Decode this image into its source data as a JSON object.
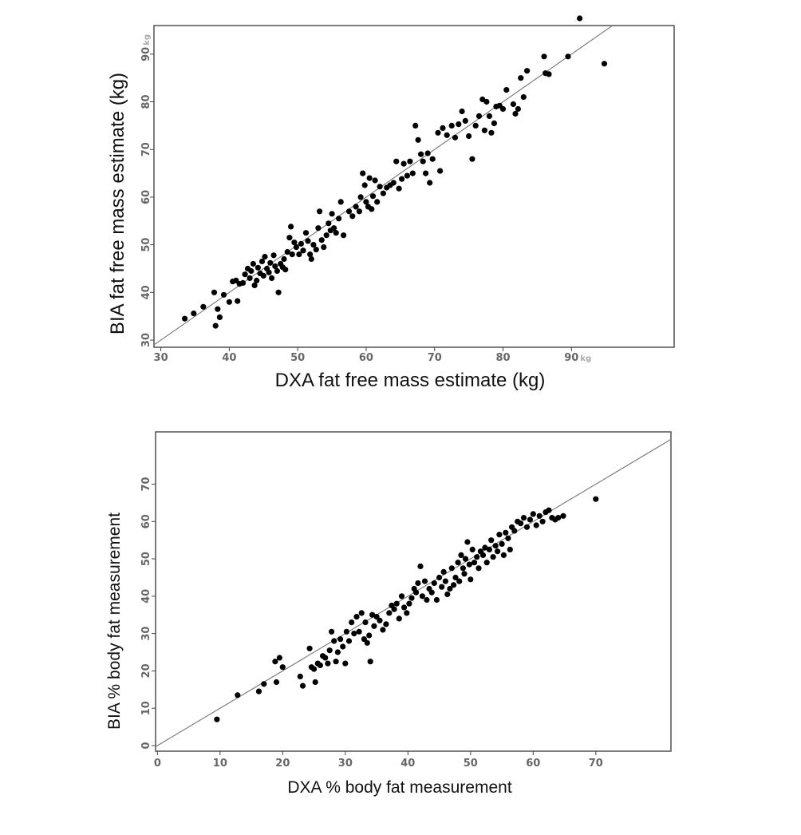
{
  "chart_data": [
    {
      "type": "scatter",
      "xlabel": "DXA fat free mass estimate (kg)",
      "ylabel": "BIA fat free mass estimate (kg)",
      "xlim": [
        29,
        105
      ],
      "ylim": [
        28.5,
        96
      ],
      "x_ticks": [
        30,
        40,
        50,
        60,
        70,
        80,
        90
      ],
      "y_ticks": [
        30,
        40,
        50,
        60,
        70,
        80,
        90
      ],
      "tick_unit": "kg",
      "identity_line": true,
      "grid": false,
      "points": [
        [
          33.5,
          34.5
        ],
        [
          34.8,
          35.6
        ],
        [
          36.2,
          37.0
        ],
        [
          37.8,
          40.0
        ],
        [
          38.0,
          33.0
        ],
        [
          38.3,
          36.5
        ],
        [
          38.6,
          34.8
        ],
        [
          39.2,
          39.5
        ],
        [
          40.0,
          38.0
        ],
        [
          40.5,
          42.3
        ],
        [
          41.2,
          38.2
        ],
        [
          41.0,
          42.5
        ],
        [
          41.5,
          41.8
        ],
        [
          42.0,
          42.0
        ],
        [
          42.3,
          43.8
        ],
        [
          42.7,
          45.0
        ],
        [
          43.0,
          43.0
        ],
        [
          43.2,
          44.5
        ],
        [
          43.5,
          46.0
        ],
        [
          43.7,
          41.5
        ],
        [
          44.0,
          42.5
        ],
        [
          44.2,
          45.2
        ],
        [
          44.5,
          44.0
        ],
        [
          44.8,
          46.5
        ],
        [
          45.0,
          43.5
        ],
        [
          45.2,
          47.5
        ],
        [
          45.5,
          45.0
        ],
        [
          45.8,
          44.2
        ],
        [
          46.0,
          46.2
        ],
        [
          46.2,
          43.0
        ],
        [
          46.5,
          47.8
        ],
        [
          46.7,
          45.5
        ],
        [
          47.0,
          44.5
        ],
        [
          47.2,
          40.0
        ],
        [
          47.5,
          46.0
        ],
        [
          47.8,
          45.3
        ],
        [
          48.0,
          47.0
        ],
        [
          48.2,
          44.8
        ],
        [
          48.5,
          48.5
        ],
        [
          48.8,
          51.5
        ],
        [
          49.0,
          53.8
        ],
        [
          49.2,
          48.0
        ],
        [
          49.5,
          50.5
        ],
        [
          49.8,
          49.5
        ],
        [
          50.2,
          48.0
        ],
        [
          50.5,
          50.2
        ],
        [
          50.8,
          48.8
        ],
        [
          51.2,
          52.5
        ],
        [
          51.5,
          50.8
        ],
        [
          51.8,
          48.0
        ],
        [
          52.0,
          47.0
        ],
        [
          52.3,
          50.0
        ],
        [
          52.7,
          49.0
        ],
        [
          53.0,
          53.5
        ],
        [
          53.2,
          57.0
        ],
        [
          53.5,
          51.0
        ],
        [
          53.8,
          49.5
        ],
        [
          54.2,
          52.0
        ],
        [
          54.5,
          54.5
        ],
        [
          54.8,
          53.0
        ],
        [
          55.0,
          56.5
        ],
        [
          55.3,
          53.5
        ],
        [
          55.6,
          52.5
        ],
        [
          56.0,
          55.5
        ],
        [
          56.3,
          59.0
        ],
        [
          56.7,
          52.0
        ],
        [
          57.5,
          57.0
        ],
        [
          58.0,
          56.0
        ],
        [
          58.5,
          58.0
        ],
        [
          59.0,
          57.0
        ],
        [
          59.2,
          60.0
        ],
        [
          59.5,
          65.0
        ],
        [
          59.8,
          62.5
        ],
        [
          60.0,
          59.0
        ],
        [
          60.3,
          58.0
        ],
        [
          60.5,
          64.0
        ],
        [
          60.8,
          57.5
        ],
        [
          61.0,
          60.2
        ],
        [
          61.3,
          63.5
        ],
        [
          61.6,
          59.0
        ],
        [
          62.0,
          62.2
        ],
        [
          62.5,
          60.8
        ],
        [
          63.0,
          62.0
        ],
        [
          63.5,
          62.5
        ],
        [
          64.0,
          63.0
        ],
        [
          64.4,
          67.5
        ],
        [
          64.8,
          61.8
        ],
        [
          65.2,
          63.8
        ],
        [
          65.5,
          67.0
        ],
        [
          66.0,
          64.5
        ],
        [
          66.4,
          67.5
        ],
        [
          66.8,
          65.0
        ],
        [
          67.2,
          75.0
        ],
        [
          67.6,
          72.0
        ],
        [
          68.0,
          69.0
        ],
        [
          68.3,
          67.5
        ],
        [
          68.7,
          65.0
        ],
        [
          69.0,
          69.2
        ],
        [
          69.3,
          63.0
        ],
        [
          69.7,
          68.0
        ],
        [
          70.5,
          73.5
        ],
        [
          70.8,
          65.5
        ],
        [
          71.2,
          74.5
        ],
        [
          71.8,
          73.0
        ],
        [
          72.5,
          75.0
        ],
        [
          73.0,
          72.5
        ],
        [
          73.5,
          75.3
        ],
        [
          74.0,
          78.0
        ],
        [
          74.5,
          76.0
        ],
        [
          75.0,
          72.8
        ],
        [
          75.5,
          68.0
        ],
        [
          76.0,
          75.0
        ],
        [
          76.5,
          77.0
        ],
        [
          77.0,
          80.5
        ],
        [
          77.3,
          74.0
        ],
        [
          77.6,
          80.0
        ],
        [
          78.0,
          77.0
        ],
        [
          78.3,
          73.5
        ],
        [
          78.7,
          75.5
        ],
        [
          79.0,
          79.0
        ],
        [
          79.5,
          79.2
        ],
        [
          80.0,
          78.5
        ],
        [
          80.5,
          82.5
        ],
        [
          81.5,
          79.5
        ],
        [
          81.8,
          77.5
        ],
        [
          82.2,
          78.5
        ],
        [
          82.6,
          85.0
        ],
        [
          83.0,
          81.0
        ],
        [
          83.5,
          86.5
        ],
        [
          86.0,
          89.5
        ],
        [
          86.2,
          86.0
        ],
        [
          86.7,
          85.8
        ],
        [
          89.5,
          89.5
        ],
        [
          91.2,
          97.5
        ],
        [
          94.8,
          88.0
        ]
      ]
    },
    {
      "type": "scatter",
      "xlabel": "DXA % body fat measurement",
      "ylabel": "BIA % body fat measurement",
      "xlim": [
        -0.3,
        82
      ],
      "ylim": [
        -1.5,
        84
      ],
      "x_ticks": [
        0,
        10,
        20,
        30,
        40,
        50,
        60,
        70
      ],
      "y_ticks": [
        0,
        10,
        20,
        30,
        40,
        50,
        60,
        70
      ],
      "identity_line": true,
      "grid": false,
      "points": [
        [
          9.5,
          7.0
        ],
        [
          12.8,
          13.5
        ],
        [
          16.2,
          14.5
        ],
        [
          17.0,
          16.5
        ],
        [
          18.8,
          22.5
        ],
        [
          19.0,
          17.0
        ],
        [
          19.5,
          23.5
        ],
        [
          20.0,
          21.0
        ],
        [
          22.8,
          18.5
        ],
        [
          23.2,
          16.0
        ],
        [
          24.3,
          26.0
        ],
        [
          24.6,
          21.0
        ],
        [
          25.0,
          20.5
        ],
        [
          25.2,
          17.0
        ],
        [
          25.6,
          22.0
        ],
        [
          26.0,
          21.5
        ],
        [
          26.4,
          24.0
        ],
        [
          26.8,
          23.5
        ],
        [
          27.2,
          22.0
        ],
        [
          27.5,
          25.5
        ],
        [
          27.8,
          30.5
        ],
        [
          28.2,
          28.0
        ],
        [
          28.5,
          22.5
        ],
        [
          28.8,
          25.0
        ],
        [
          29.2,
          28.5
        ],
        [
          29.6,
          26.5
        ],
        [
          30.0,
          22.0
        ],
        [
          30.2,
          30.5
        ],
        [
          30.6,
          28.0
        ],
        [
          31.0,
          33.0
        ],
        [
          31.4,
          30.0
        ],
        [
          31.8,
          34.5
        ],
        [
          32.2,
          30.5
        ],
        [
          32.6,
          35.5
        ],
        [
          33.0,
          28.5
        ],
        [
          33.2,
          33.0
        ],
        [
          33.5,
          27.5
        ],
        [
          33.8,
          29.5
        ],
        [
          34.0,
          22.5
        ],
        [
          34.3,
          35.0
        ],
        [
          34.6,
          32.0
        ],
        [
          35.0,
          34.5
        ],
        [
          35.5,
          33.5
        ],
        [
          36.0,
          31.0
        ],
        [
          36.5,
          32.5
        ],
        [
          37.0,
          35.5
        ],
        [
          37.4,
          37.5
        ],
        [
          37.8,
          36.5
        ],
        [
          38.2,
          38.0
        ],
        [
          38.6,
          34.0
        ],
        [
          39.0,
          40.0
        ],
        [
          39.4,
          37.0
        ],
        [
          39.8,
          35.5
        ],
        [
          40.2,
          38.0
        ],
        [
          40.6,
          39.5
        ],
        [
          41.0,
          42.0
        ],
        [
          41.3,
          41.0
        ],
        [
          41.6,
          43.5
        ],
        [
          42.0,
          48.0
        ],
        [
          42.3,
          40.0
        ],
        [
          42.7,
          44.0
        ],
        [
          43.0,
          39.0
        ],
        [
          43.4,
          42.0
        ],
        [
          43.8,
          41.0
        ],
        [
          44.2,
          43.5
        ],
        [
          44.6,
          39.0
        ],
        [
          45.0,
          45.0
        ],
        [
          45.4,
          42.5
        ],
        [
          45.7,
          46.5
        ],
        [
          46.0,
          44.0
        ],
        [
          46.3,
          40.5
        ],
        [
          46.7,
          42.0
        ],
        [
          47.0,
          47.5
        ],
        [
          47.3,
          43.0
        ],
        [
          47.6,
          45.0
        ],
        [
          48.0,
          49.0
        ],
        [
          48.2,
          44.0
        ],
        [
          48.5,
          51.0
        ],
        [
          48.8,
          47.5
        ],
        [
          49.0,
          46.0
        ],
        [
          49.2,
          50.0
        ],
        [
          49.5,
          54.5
        ],
        [
          49.8,
          48.5
        ],
        [
          50.0,
          44.5
        ],
        [
          50.3,
          52.5
        ],
        [
          50.6,
          49.0
        ],
        [
          51.0,
          50.5
        ],
        [
          51.3,
          47.5
        ],
        [
          51.6,
          52.0
        ],
        [
          52.0,
          51.0
        ],
        [
          52.3,
          53.0
        ],
        [
          52.6,
          49.0
        ],
        [
          53.0,
          52.5
        ],
        [
          53.3,
          55.0
        ],
        [
          53.6,
          50.5
        ],
        [
          54.0,
          53.5
        ],
        [
          54.3,
          52.0
        ],
        [
          54.6,
          56.5
        ],
        [
          55.0,
          54.0
        ],
        [
          55.3,
          51.0
        ],
        [
          55.6,
          57.0
        ],
        [
          56.0,
          55.5
        ],
        [
          56.3,
          52.5
        ],
        [
          56.6,
          58.5
        ],
        [
          57.0,
          57.5
        ],
        [
          57.5,
          60.0
        ],
        [
          58.0,
          59.5
        ],
        [
          58.5,
          61.0
        ],
        [
          59.0,
          58.5
        ],
        [
          59.5,
          60.5
        ],
        [
          60.0,
          62.0
        ],
        [
          60.5,
          59.0
        ],
        [
          61.0,
          61.5
        ],
        [
          61.5,
          60.0
        ],
        [
          62.0,
          62.5
        ],
        [
          62.5,
          63.0
        ],
        [
          63.0,
          61.0
        ],
        [
          63.5,
          60.5
        ],
        [
          64.0,
          61.0
        ],
        [
          64.8,
          61.5
        ],
        [
          70.0,
          66.0
        ]
      ]
    }
  ]
}
